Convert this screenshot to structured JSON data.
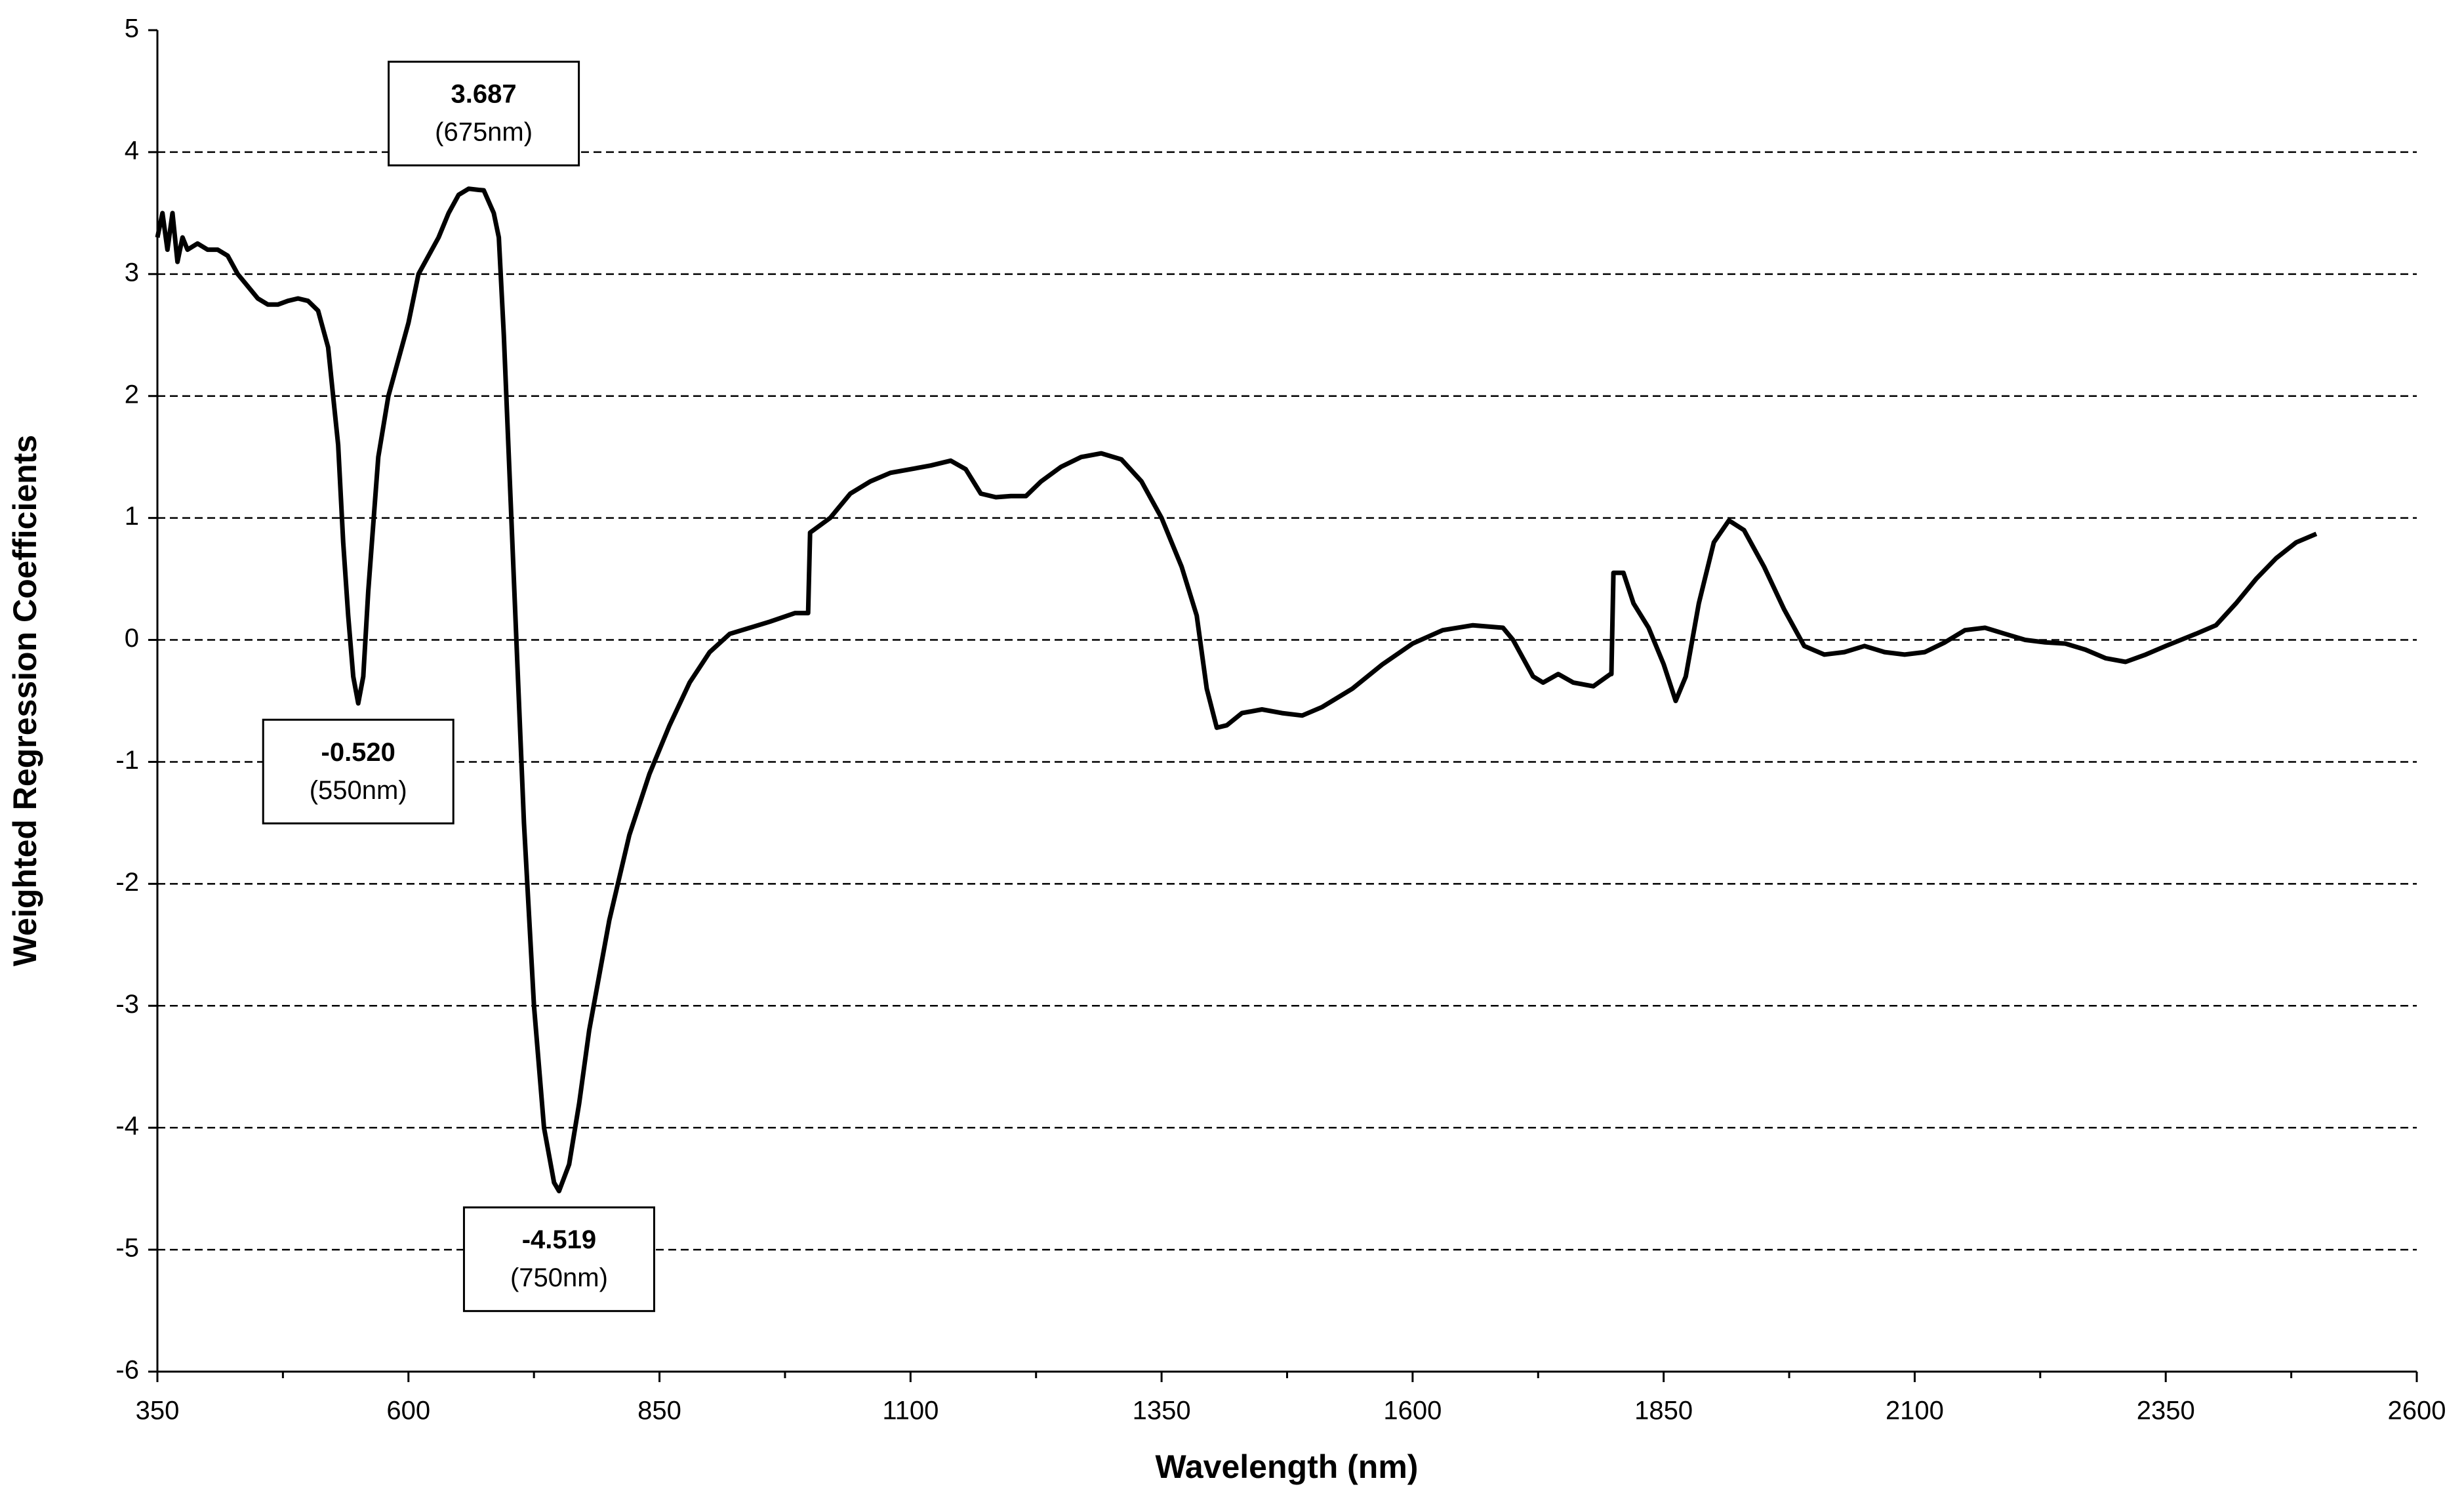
{
  "chart_data": {
    "type": "line",
    "xlabel": "Wavelength (nm)",
    "ylabel": "Weighted Regression Coefficients",
    "color": "#000000",
    "xlim": [
      350,
      2600
    ],
    "xticks": [
      350,
      600,
      850,
      1100,
      1350,
      1600,
      1850,
      2100,
      2350,
      2600
    ],
    "xminorticks": [
      475,
      725,
      975,
      1225,
      1475,
      1725,
      1975,
      2225,
      2475
    ],
    "ylim": [
      -6,
      5
    ],
    "yticks": [
      -6,
      -5,
      -4,
      -3,
      -2,
      -1,
      0,
      1,
      2,
      3,
      4,
      5
    ],
    "grid": true,
    "x": [
      350,
      355,
      360,
      365,
      370,
      375,
      380,
      390,
      400,
      410,
      420,
      430,
      440,
      450,
      460,
      470,
      480,
      490,
      500,
      510,
      520,
      530,
      535,
      540,
      545,
      550,
      555,
      560,
      570,
      580,
      590,
      600,
      610,
      620,
      630,
      640,
      650,
      660,
      670,
      675,
      685,
      690,
      695,
      705,
      715,
      725,
      735,
      745,
      750,
      760,
      770,
      780,
      800,
      820,
      840,
      860,
      880,
      900,
      920,
      940,
      960,
      985,
      998,
      1000,
      1020,
      1040,
      1060,
      1080,
      1100,
      1120,
      1140,
      1155,
      1170,
      1185,
      1200,
      1215,
      1230,
      1250,
      1270,
      1290,
      1310,
      1330,
      1350,
      1370,
      1385,
      1395,
      1405,
      1415,
      1430,
      1450,
      1470,
      1490,
      1510,
      1540,
      1570,
      1600,
      1630,
      1660,
      1690,
      1700,
      1720,
      1730,
      1745,
      1760,
      1780,
      1797,
      1798,
      1800,
      1810,
      1820,
      1835,
      1850,
      1862,
      1872,
      1885,
      1900,
      1915,
      1930,
      1950,
      1970,
      1990,
      2010,
      2030,
      2050,
      2070,
      2090,
      2110,
      2130,
      2150,
      2170,
      2190,
      2210,
      2230,
      2250,
      2270,
      2290,
      2310,
      2330,
      2350,
      2380,
      2400,
      2420,
      2440,
      2460,
      2480,
      2500
    ],
    "values": [
      3.3,
      3.5,
      3.2,
      3.5,
      3.1,
      3.3,
      3.2,
      3.25,
      3.2,
      3.2,
      3.15,
      3.0,
      2.9,
      2.8,
      2.75,
      2.75,
      2.78,
      2.8,
      2.78,
      2.7,
      2.4,
      1.6,
      0.8,
      0.2,
      -0.3,
      -0.52,
      -0.3,
      0.4,
      1.5,
      2.0,
      2.3,
      2.6,
      3.0,
      3.15,
      3.3,
      3.5,
      3.65,
      3.7,
      3.69,
      3.687,
      3.5,
      3.3,
      2.5,
      0.5,
      -1.5,
      -3.0,
      -4.0,
      -4.45,
      -4.519,
      -4.3,
      -3.8,
      -3.2,
      -2.3,
      -1.6,
      -1.1,
      -0.7,
      -0.35,
      -0.1,
      0.05,
      0.1,
      0.15,
      0.22,
      0.22,
      0.88,
      1.0,
      1.2,
      1.3,
      1.37,
      1.4,
      1.43,
      1.47,
      1.4,
      1.2,
      1.17,
      1.18,
      1.18,
      1.3,
      1.42,
      1.5,
      1.53,
      1.48,
      1.3,
      1.0,
      0.6,
      0.2,
      -0.4,
      -0.72,
      -0.7,
      -0.6,
      -0.57,
      -0.6,
      -0.62,
      -0.55,
      -0.4,
      -0.2,
      -0.03,
      0.08,
      0.12,
      0.1,
      0.0,
      -0.3,
      -0.35,
      -0.28,
      -0.35,
      -0.38,
      -0.28,
      -0.28,
      0.55,
      0.55,
      0.3,
      0.1,
      -0.2,
      -0.5,
      -0.3,
      0.3,
      0.8,
      0.98,
      0.9,
      0.6,
      0.25,
      -0.05,
      -0.12,
      -0.1,
      -0.05,
      -0.1,
      -0.12,
      -0.1,
      -0.02,
      0.08,
      0.1,
      0.05,
      0.0,
      -0.02,
      -0.03,
      -0.08,
      -0.15,
      -0.18,
      -0.12,
      -0.05,
      0.05,
      0.12,
      0.3,
      0.5,
      0.67,
      0.8,
      0.87
    ],
    "annotations": [
      {
        "x": 675,
        "y": 3.687,
        "label": "3.687",
        "note": "(675nm)"
      },
      {
        "x": 550,
        "y": -0.52,
        "label": "-0.520",
        "note": "(550nm)"
      },
      {
        "x": 750,
        "y": -4.519,
        "label": "-4.519",
        "note": "(750nm)"
      }
    ]
  }
}
